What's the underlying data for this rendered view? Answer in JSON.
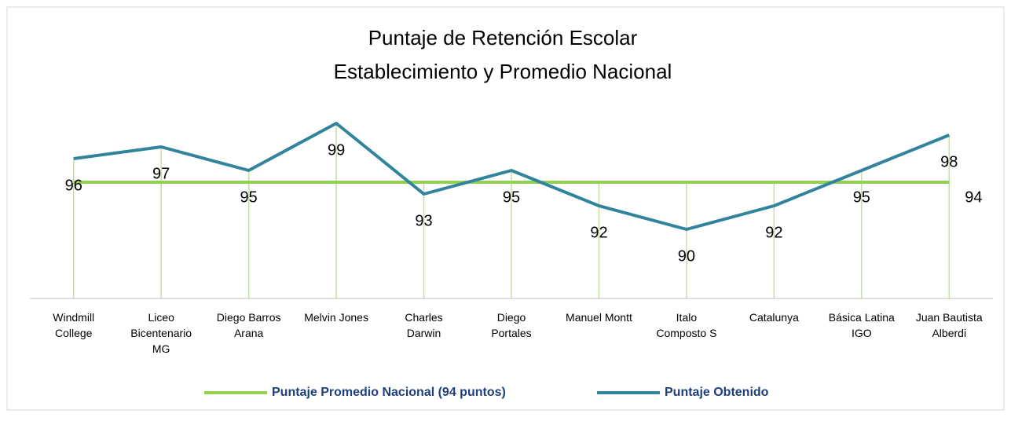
{
  "chart_data": {
    "type": "line",
    "title": "Puntaje de Retención Escolar",
    "subtitle": "Establecimiento y Promedio Nacional",
    "categories": [
      "Windmill College",
      "Liceo Bicentenario MG",
      "Diego Barros Arana",
      "Melvin Jones",
      "Charles Darwin",
      "Diego Portales",
      "Manuel Montt",
      "Italo Composto S",
      "Catalunya",
      "Básica Latina IGO",
      "Juan Bautista Alberdi"
    ],
    "series": [
      {
        "name": "Puntaje Promedio Nacional (94 puntos)",
        "color": "#92d050",
        "values": [
          94,
          94,
          94,
          94,
          94,
          94,
          94,
          94,
          94,
          94,
          94
        ],
        "data_labels": "last"
      },
      {
        "name": "Puntaje Obtenido",
        "color": "#31849b",
        "values": [
          96,
          97,
          95,
          99,
          93,
          95,
          92,
          90,
          92,
          95,
          98
        ],
        "data_labels": "all"
      }
    ],
    "ylim": [
      84,
      100
    ],
    "drop_lines": true,
    "legend": "bottom"
  }
}
